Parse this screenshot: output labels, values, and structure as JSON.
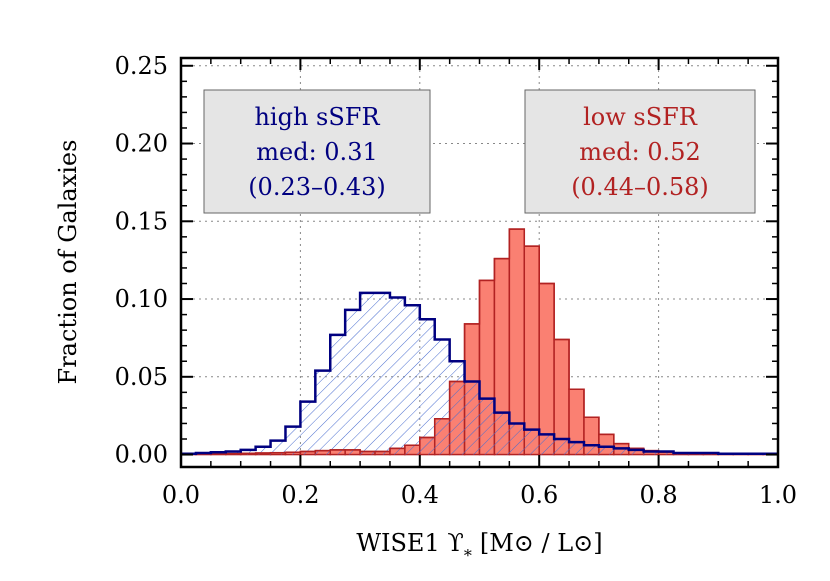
{
  "chart_data": {
    "type": "bar",
    "xlabel": "WISE1 ϒ",
    "xlabel_sub": "*",
    "xlabel_units": "[M⊙ / L⊙]",
    "ylabel": "Fraction of Galaxies",
    "xlim": [
      0.0,
      1.0
    ],
    "ylim": [
      -0.008,
      0.255
    ],
    "xticks": [
      "0.0",
      "0.2",
      "0.4",
      "0.6",
      "0.8",
      "1.0"
    ],
    "yticks": [
      "0.00",
      "0.05",
      "0.10",
      "0.15",
      "0.20",
      "0.25"
    ],
    "grid": true,
    "bin_width": 0.025,
    "series": [
      {
        "name": "high sSFR",
        "color": "#000080",
        "fill": "hatched",
        "bin_starts": [
          0.0,
          0.025,
          0.05,
          0.075,
          0.1,
          0.125,
          0.15,
          0.175,
          0.2,
          0.225,
          0.25,
          0.275,
          0.3,
          0.325,
          0.35,
          0.375,
          0.4,
          0.425,
          0.45,
          0.475,
          0.5,
          0.525,
          0.55,
          0.575,
          0.6,
          0.625,
          0.65,
          0.675,
          0.7,
          0.725,
          0.75,
          0.775,
          0.8,
          0.825,
          0.85,
          0.875,
          0.9,
          0.925,
          0.95,
          0.975
        ],
        "values": [
          0.0005,
          0.001,
          0.0015,
          0.002,
          0.003,
          0.005,
          0.009,
          0.018,
          0.034,
          0.054,
          0.077,
          0.093,
          0.104,
          0.104,
          0.101,
          0.096,
          0.087,
          0.074,
          0.06,
          0.047,
          0.036,
          0.027,
          0.02,
          0.016,
          0.013,
          0.01,
          0.008,
          0.006,
          0.005,
          0.004,
          0.003,
          0.002,
          0.002,
          0.001,
          0.001,
          0.001,
          0.0005,
          0.0005,
          0.0005,
          0.0005
        ]
      },
      {
        "name": "low sSFR",
        "color": "#b22222",
        "fill": "#fa8072",
        "bin_starts": [
          0.0,
          0.025,
          0.05,
          0.075,
          0.1,
          0.125,
          0.15,
          0.175,
          0.2,
          0.225,
          0.25,
          0.275,
          0.3,
          0.325,
          0.35,
          0.375,
          0.4,
          0.425,
          0.45,
          0.475,
          0.5,
          0.525,
          0.55,
          0.575,
          0.6,
          0.625,
          0.65,
          0.675,
          0.7,
          0.725,
          0.75,
          0.775,
          0.8,
          0.825,
          0.85,
          0.875,
          0.9,
          0.925,
          0.95,
          0.975
        ],
        "values": [
          0.0003,
          0.0004,
          0.0005,
          0.0006,
          0.0008,
          0.001,
          0.0012,
          0.0015,
          0.002,
          0.0025,
          0.003,
          0.003,
          0.002,
          0.002,
          0.004,
          0.006,
          0.011,
          0.023,
          0.047,
          0.084,
          0.112,
          0.126,
          0.145,
          0.134,
          0.11,
          0.074,
          0.042,
          0.024,
          0.013,
          0.007,
          0.004,
          0.0025,
          0.0015,
          0.001,
          0.001,
          0.0008,
          0.0005,
          0.0005,
          0.0005,
          0.0004
        ]
      }
    ],
    "annotations": [
      {
        "id": "high",
        "lines": [
          "high sSFR",
          "med: 0.31",
          "(0.23–0.43)"
        ],
        "color": "#000080",
        "position": "top-left"
      },
      {
        "id": "low",
        "lines": [
          "low sSFR",
          "med: 0.52",
          "(0.44–0.58)"
        ],
        "color": "#b22222",
        "position": "top-right"
      }
    ]
  }
}
